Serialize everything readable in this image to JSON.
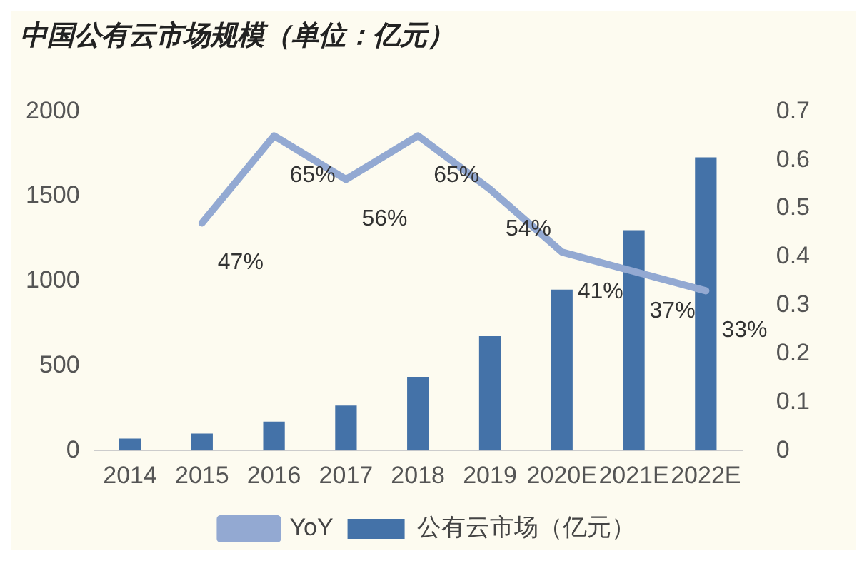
{
  "chart_data": {
    "type": "bar",
    "title": "中国公有云市场规模（单位：亿元）",
    "categories": [
      "2014",
      "2015",
      "2016",
      "2017",
      "2018",
      "2019",
      "2020E",
      "2021E",
      "2022E"
    ],
    "series": [
      {
        "name": "公有云市场（亿元）",
        "color": "#4472a8",
        "values": [
          70,
          100,
          170,
          265,
          435,
          675,
          950,
          1300,
          1730
        ]
      },
      {
        "name": "YoY",
        "type": "line",
        "axis": "y2",
        "color": "#93a9d2",
        "values": [
          null,
          0.47,
          0.65,
          0.56,
          0.65,
          0.54,
          0.41,
          0.37,
          0.33
        ],
        "value_labels": [
          null,
          "47%",
          "65%",
          "56%",
          "65%",
          "54%",
          "41%",
          "37%",
          "33%"
        ]
      }
    ],
    "ylim": [
      0,
      2000
    ],
    "yticks": [
      0,
      500,
      1000,
      1500,
      2000
    ],
    "y2lim": [
      0,
      0.7
    ],
    "y2ticks": [
      0,
      0.1,
      0.2,
      0.3,
      0.4,
      0.5,
      0.6,
      0.7
    ],
    "grid": false,
    "legend": "bottom",
    "marker": "none"
  }
}
